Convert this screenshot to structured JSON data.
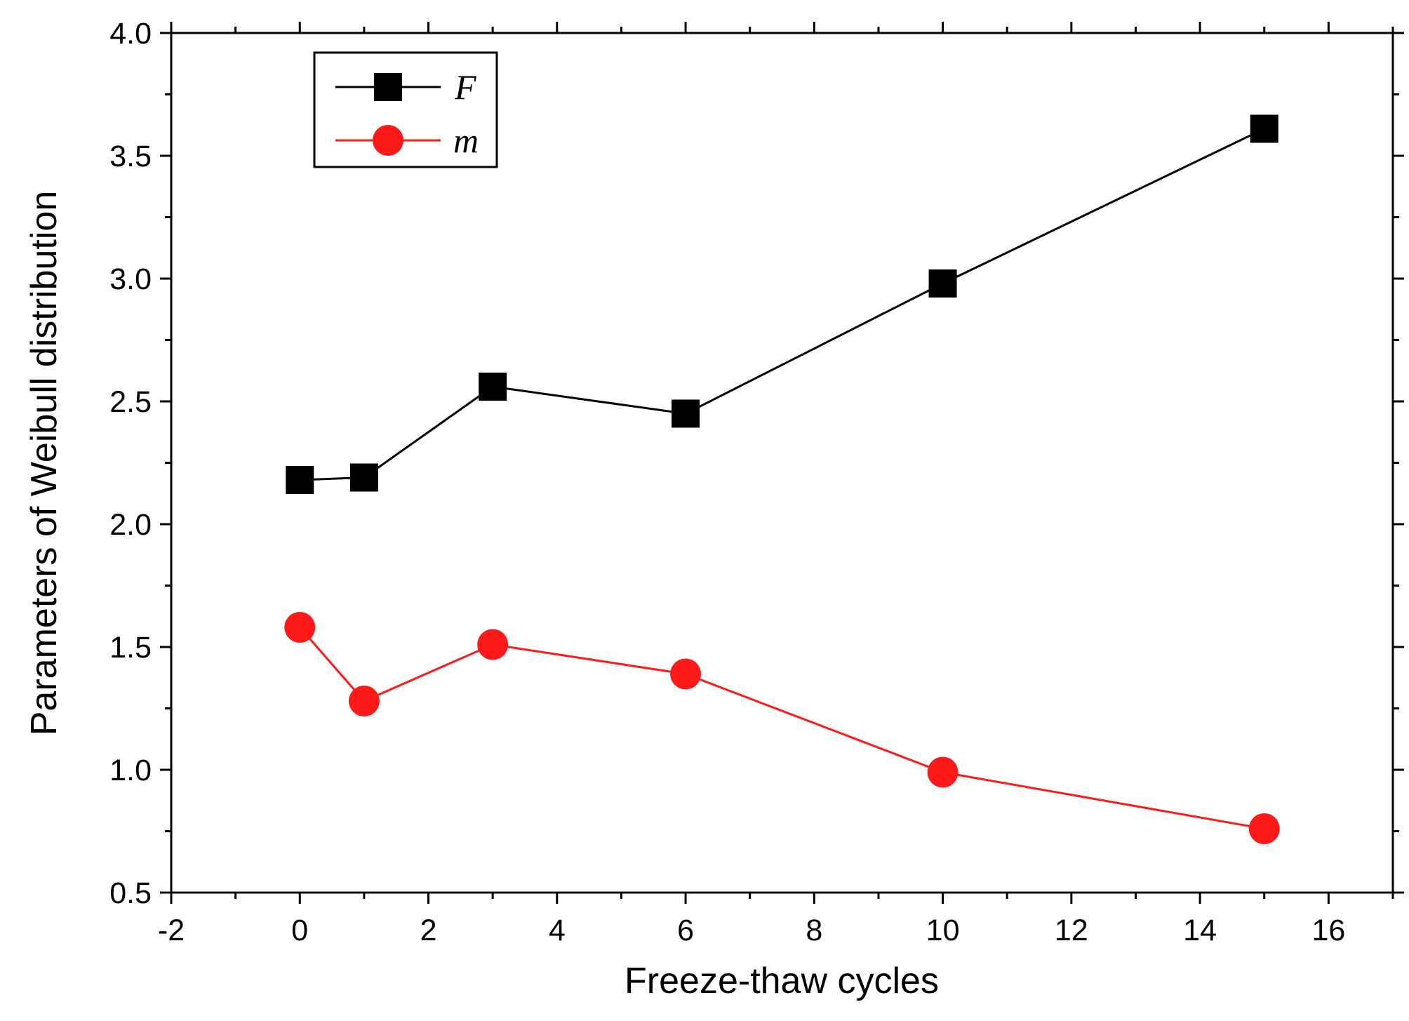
{
  "chart_data": {
    "type": "line",
    "title": "",
    "xlabel": "Freeze-thaw cycles",
    "ylabel": "Parameters of Weibull distribution",
    "xlim": [
      -2,
      17
    ],
    "ylim": [
      0.5,
      4.0
    ],
    "x_ticks": [
      -2,
      0,
      2,
      4,
      6,
      8,
      10,
      12,
      14,
      16
    ],
    "x_tick_labels": [
      "-2",
      "0",
      "2",
      "4",
      "6",
      "8",
      "10",
      "12",
      "14",
      "16"
    ],
    "y_ticks": [
      0.5,
      1.0,
      1.5,
      2.0,
      2.5,
      3.0,
      3.5,
      4.0
    ],
    "y_tick_labels": [
      "0.5",
      "1.0",
      "1.5",
      "2.0",
      "2.5",
      "3.0",
      "3.5",
      "4.0"
    ],
    "grid": false,
    "legend_position": "top-left",
    "series": [
      {
        "name": "F",
        "color": "#000000",
        "marker": "square",
        "x": [
          0,
          1,
          3,
          6,
          10,
          15
        ],
        "values": [
          2.18,
          2.19,
          2.56,
          2.45,
          2.98,
          3.61
        ]
      },
      {
        "name": "m",
        "color": "#ff1a1a",
        "marker": "circle",
        "x": [
          0,
          1,
          3,
          6,
          10,
          15
        ],
        "values": [
          1.58,
          1.28,
          1.51,
          1.39,
          0.99,
          0.76
        ]
      }
    ]
  }
}
